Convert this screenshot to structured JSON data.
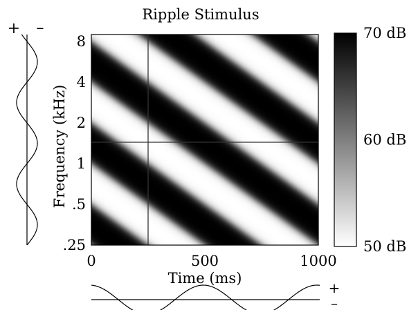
{
  "chart_data": {
    "type": "heatmap",
    "title": "Ripple Stimulus",
    "xlabel": "Time (ms)",
    "ylabel": "Frequency (kHz)",
    "x_ticks": [
      0,
      500,
      1000
    ],
    "x_tick_labels": [
      "0",
      "500",
      "1000"
    ],
    "xlim": [
      0,
      1000
    ],
    "y_ticks": [
      0.25,
      0.5,
      1,
      2,
      4,
      8
    ],
    "y_tick_labels": [
      ".25",
      ".5",
      "1",
      "2",
      "4",
      "8"
    ],
    "y_scale": "log2",
    "ylim": [
      0.25,
      9
    ],
    "colorbar": {
      "range_db": [
        50,
        70
      ],
      "ticks": [
        50,
        60,
        70
      ],
      "tick_labels": [
        "50 dB",
        "60 dB",
        "70 dB"
      ],
      "color_low": "#ffffff",
      "color_high": "#000000"
    },
    "ripple": {
      "temporal_period_ms": 500,
      "spectral_density_cycles_per_octave": 0.5,
      "phase_deg": 0
    },
    "crosshair": {
      "time_ms": 250,
      "frequency_khz": 1.44
    },
    "frequency_profile_signs": {
      "plus": "+",
      "minus": "–"
    },
    "time_profile_signs": {
      "plus": "+",
      "minus": "–"
    }
  }
}
